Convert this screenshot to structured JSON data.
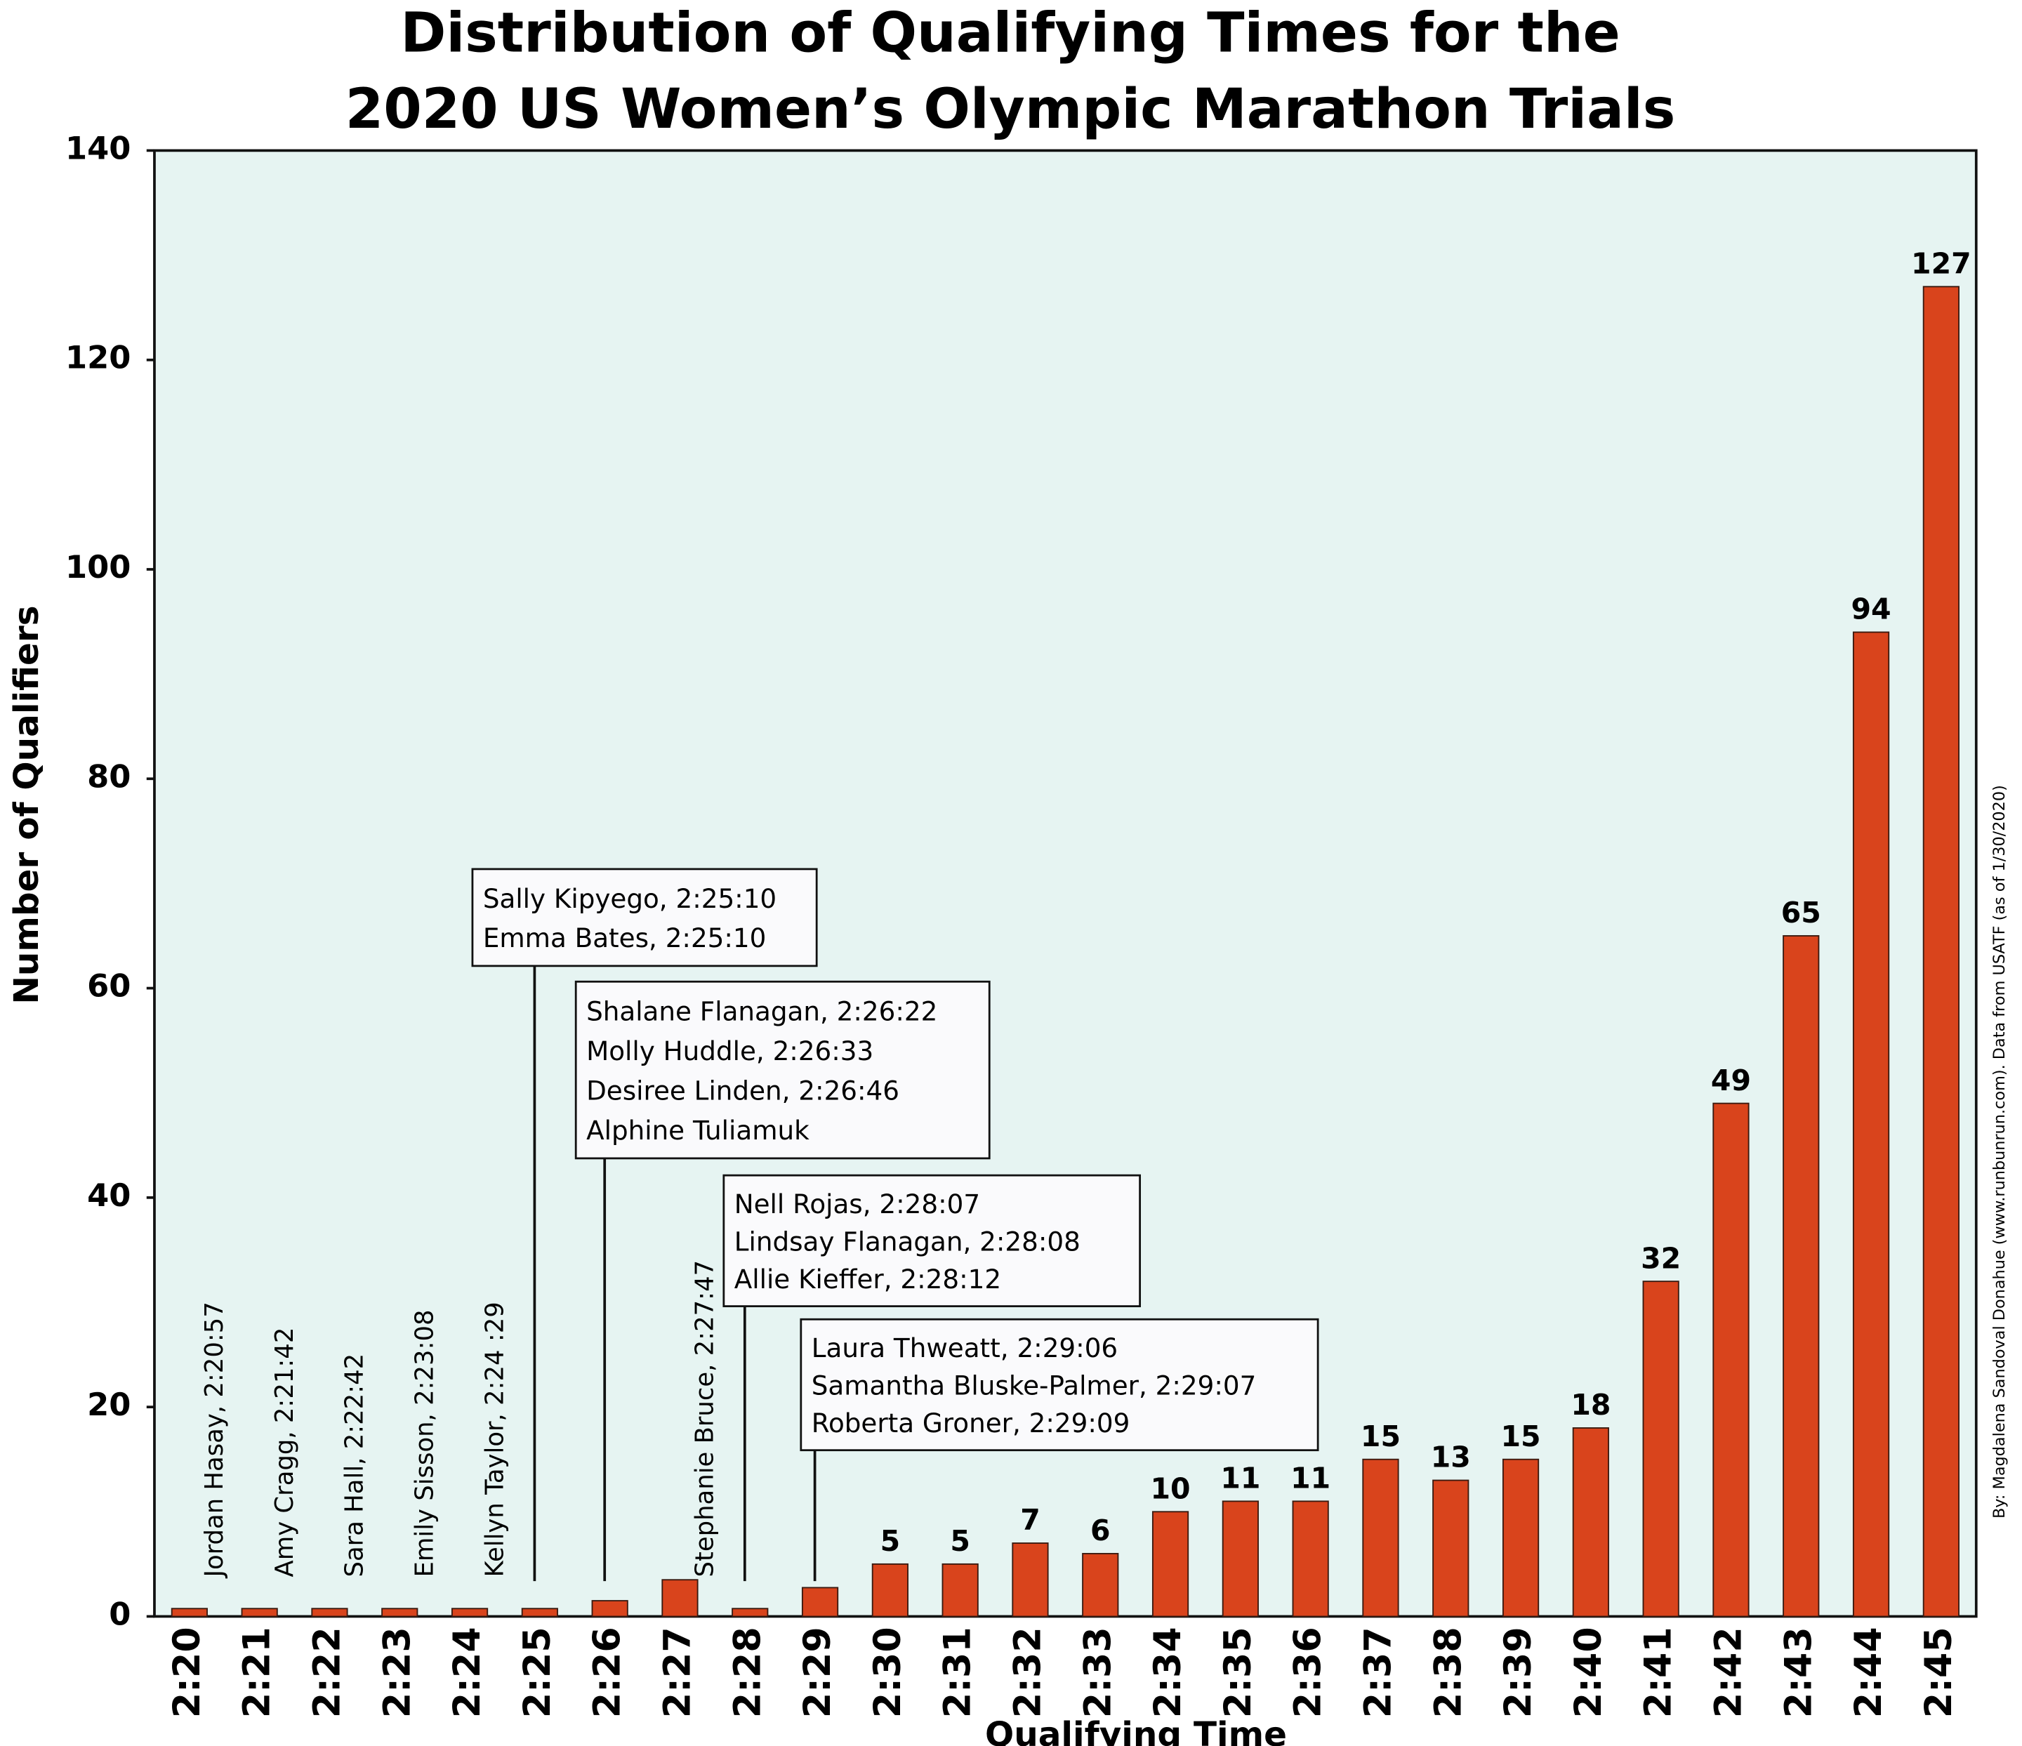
{
  "chart_data": {
    "type": "bar",
    "title": [
      "Distribution of Qualifying Times for the",
      "2020 US Women’s Olympic Marathon Trials"
    ],
    "x_label": "Qualifying Time",
    "y_label": "Number of Qualifiers",
    "credit": "By: Magdalena Sandoval Donahue (www.runbunrun.com). Data from USATF (as of 1/30/2020)",
    "categories": [
      "2:20",
      "2:21",
      "2:22",
      "2:23",
      "2:24",
      "2:25",
      "2:26",
      "2:27",
      "2:28",
      "2:29",
      "2:30",
      "2:31",
      "2:32",
      "2:33",
      "2:34",
      "2:35",
      "2:36",
      "2:37",
      "2:38",
      "2:39",
      "2:40",
      "2:41",
      "2:42",
      "2:43",
      "2:44",
      "2:45"
    ],
    "values": [
      0.75,
      0.75,
      0.75,
      0.75,
      0.75,
      0.75,
      1.5,
      3.5,
      0.75,
      2.75,
      5,
      5,
      7,
      6,
      10,
      11,
      11,
      15,
      13,
      15,
      18,
      32,
      49,
      65,
      94,
      127
    ],
    "value_labels": [
      null,
      null,
      null,
      null,
      null,
      null,
      null,
      null,
      null,
      null,
      "5",
      "5",
      "7",
      "6",
      "10",
      "11",
      "11",
      "15",
      "13",
      "15",
      "18",
      "32",
      "49",
      "65",
      "94",
      "127"
    ],
    "color": "#d9441c",
    "background": "#e6f4f2",
    "ylim": [
      0,
      140
    ],
    "yticks": [
      0,
      20,
      40,
      60,
      80,
      100,
      120,
      140
    ],
    "grid": false,
    "annotations": [
      {
        "category": "2:20",
        "text": "Jordan Hasay, 2:20:57"
      },
      {
        "category": "2:21",
        "text": "Amy Cragg, 2:21:42"
      },
      {
        "category": "2:22",
        "text": "Sara Hall, 2:22:42"
      },
      {
        "category": "2:23",
        "text": "Emily Sisson, 2:23:08"
      },
      {
        "category": "2:24",
        "text": "Kellyn Taylor, 2:24 :29"
      },
      {
        "category": "2:27",
        "text": "Stephanie Bruce, 2:27:47"
      }
    ],
    "callouts": [
      {
        "category": "2:25",
        "lines": [
          "Sally Kipyego, 2:25:10",
          "Emma Bates, 2:25:10"
        ]
      },
      {
        "category": "2:26",
        "lines": [
          "Shalane Flanagan, 2:26:22",
          "Molly Huddle, 2:26:33",
          "Desiree Linden, 2:26:46",
          "Alphine Tuliamuk"
        ]
      },
      {
        "category": "2:28",
        "lines": [
          "Nell Rojas, 2:28:07",
          "Lindsay Flanagan, 2:28:08",
          "Allie Kieffer, 2:28:12"
        ]
      },
      {
        "category": "2:29",
        "lines": [
          "Laura Thweatt, 2:29:06",
          "Samantha Bluske-Palmer, 2:29:07",
          "Roberta Groner, 2:29:09"
        ]
      }
    ]
  }
}
